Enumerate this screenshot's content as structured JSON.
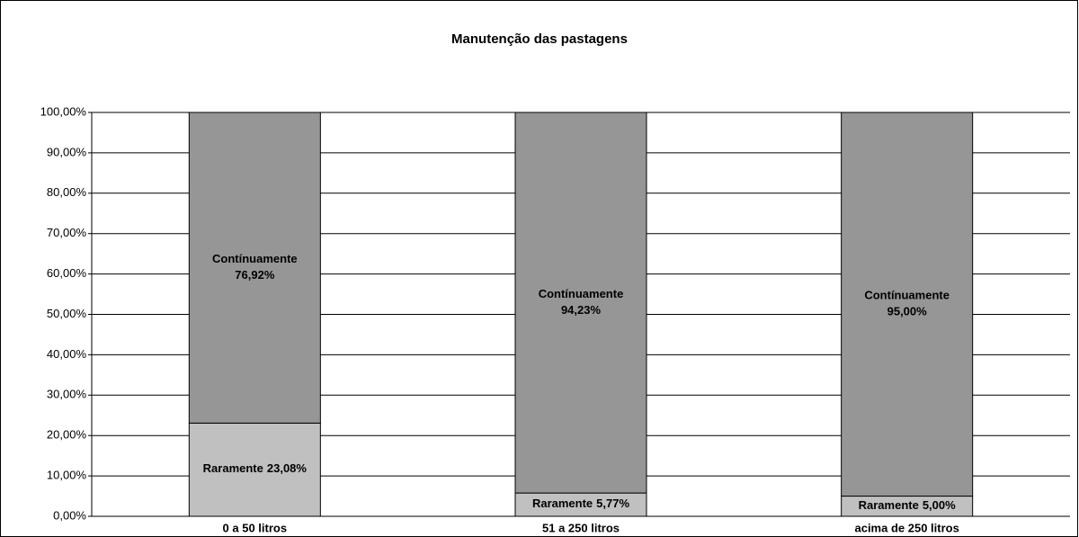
{
  "chart_data": {
    "type": "stacked_bar",
    "title": "Manutenção das pastagens",
    "categories": [
      "0 a 50 litros",
      "51 a 250 litros",
      "acima de 250 litros"
    ],
    "series": [
      {
        "name": "Raramente",
        "color": "#c0c0c0",
        "values": [
          23.08,
          5.77,
          5.0
        ],
        "value_labels": [
          "23,08%",
          "5,77%",
          "5,00%"
        ]
      },
      {
        "name": "Contínuamente",
        "color": "#969696",
        "values": [
          76.92,
          94.23,
          95.0
        ],
        "value_labels": [
          "76,92%",
          "94,23%",
          "95,00%"
        ]
      }
    ],
    "ylim": [
      0,
      100
    ],
    "yticks": [
      {
        "value": 0,
        "label": "0,00%"
      },
      {
        "value": 10,
        "label": "10,00%"
      },
      {
        "value": 20,
        "label": "20,00%"
      },
      {
        "value": 30,
        "label": "30,00%"
      },
      {
        "value": 40,
        "label": "40,00%"
      },
      {
        "value": 50,
        "label": "50,00%"
      },
      {
        "value": 60,
        "label": "60,00%"
      },
      {
        "value": 70,
        "label": "70,00%"
      },
      {
        "value": 80,
        "label": "80,00%"
      },
      {
        "value": 90,
        "label": "90,00%"
      },
      {
        "value": 100,
        "label": "100,00%"
      }
    ],
    "grid": true
  }
}
